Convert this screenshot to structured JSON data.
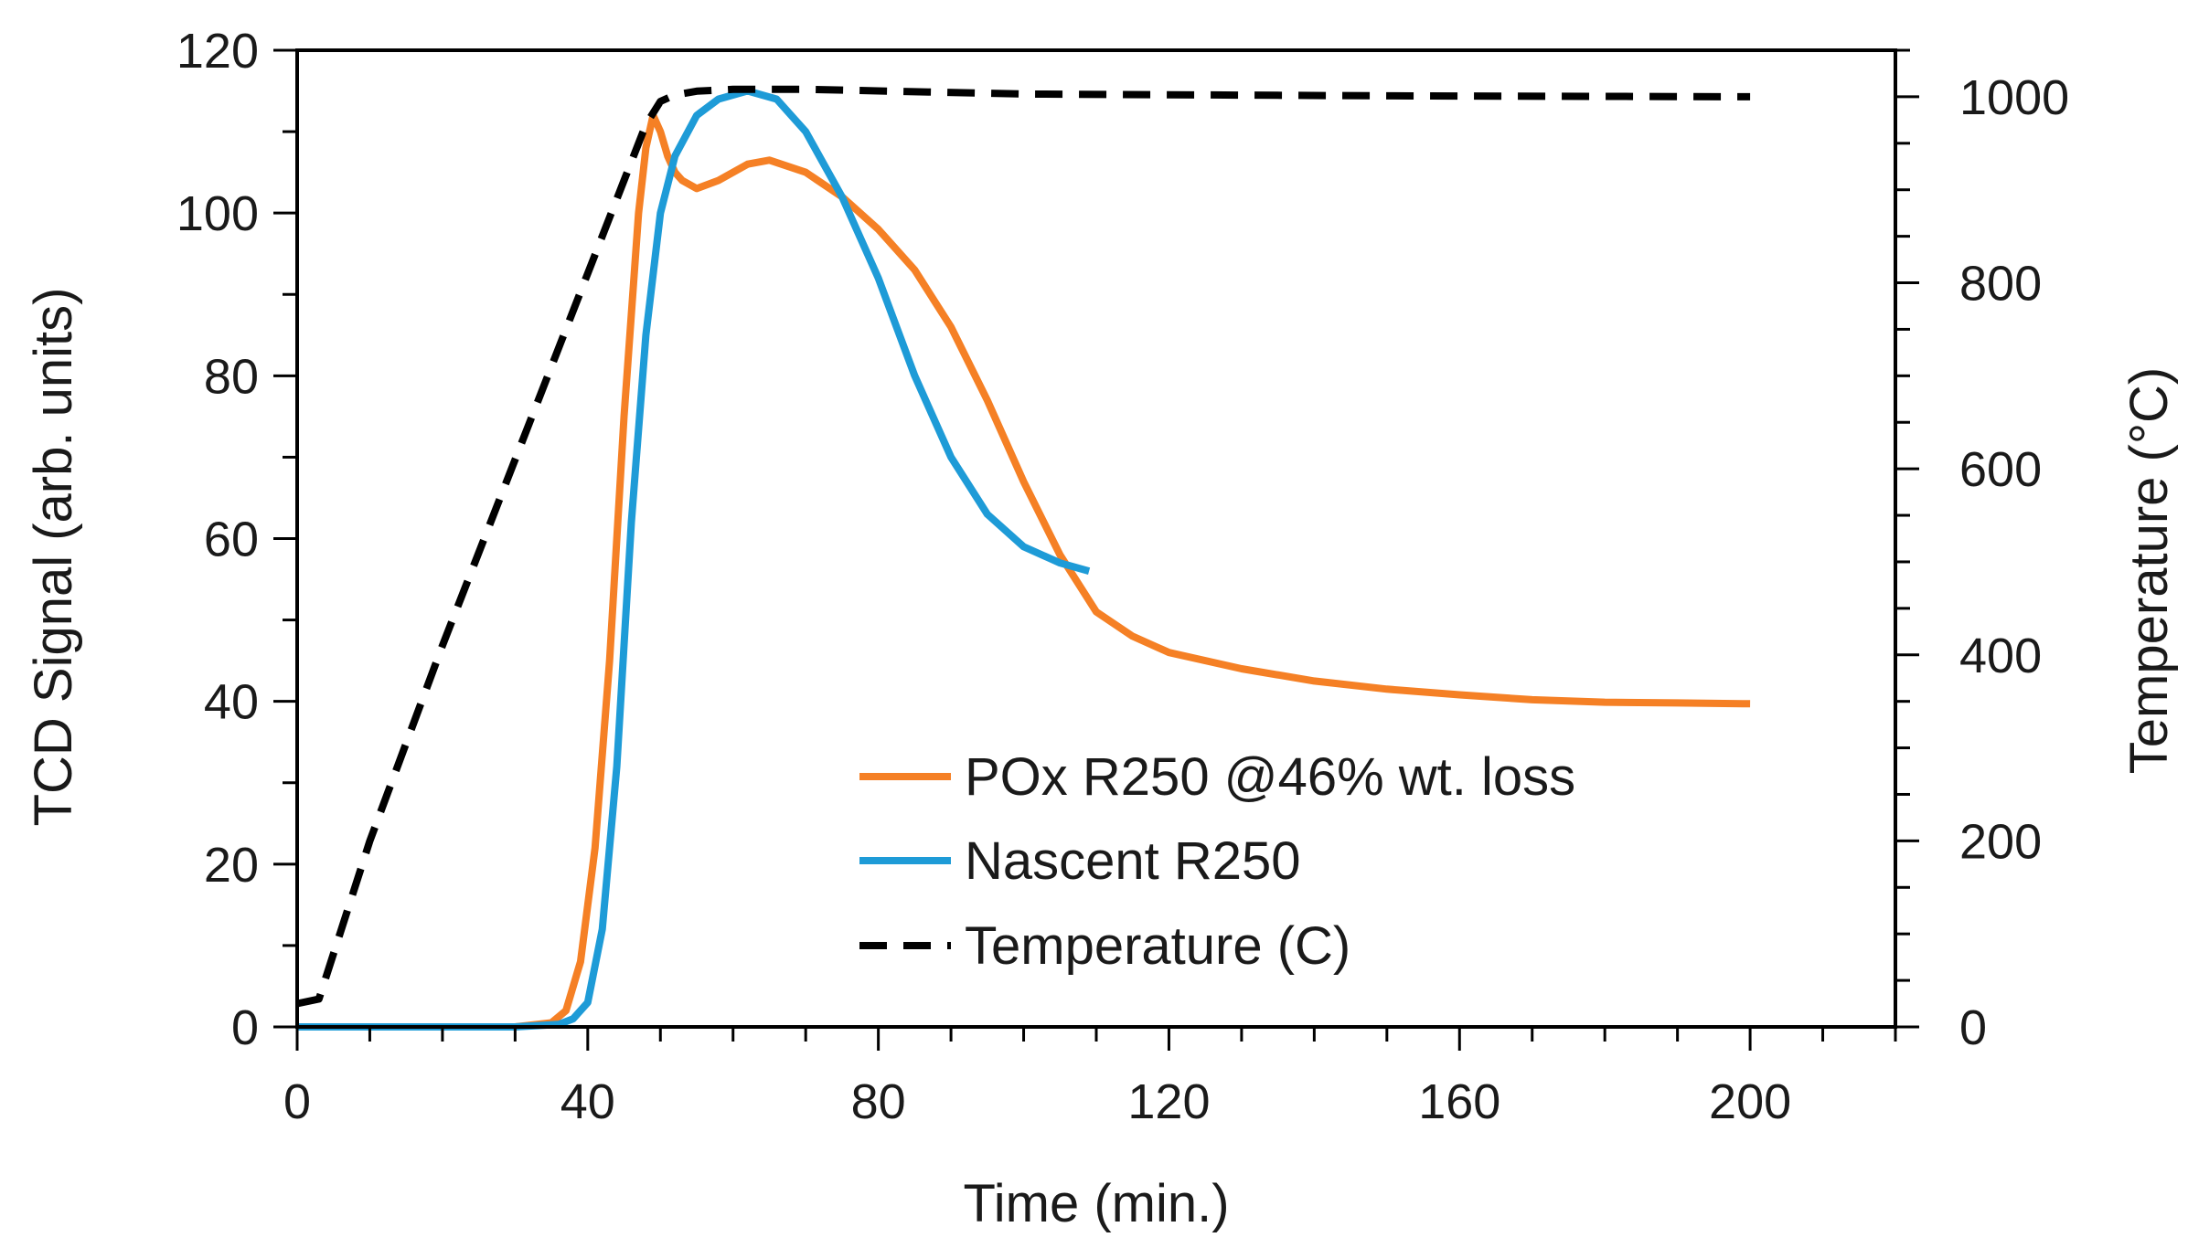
{
  "chart_data": {
    "type": "line",
    "title": "",
    "xlabel": "Time (min.)",
    "ylabel": "TCD Signal (arb. units)",
    "y2label": "Temperature (°C)",
    "xlim": [
      0,
      220
    ],
    "ylim": [
      0,
      120
    ],
    "y2lim": [
      0,
      1050
    ],
    "x_ticks": [
      0,
      40,
      80,
      120,
      160,
      200
    ],
    "y_ticks": [
      0,
      20,
      40,
      60,
      80,
      100,
      120
    ],
    "y2_ticks": [
      0,
      200,
      400,
      600,
      800,
      1000
    ],
    "legend_position": "center-right",
    "series": [
      {
        "name": "POx R250 @46% wt. loss",
        "axis": "left",
        "color": "#F58025",
        "style": "solid",
        "x": [
          0,
          30,
          35,
          37,
          39,
          41,
          43,
          45,
          47,
          48,
          49,
          50,
          51,
          52,
          53,
          55,
          58,
          62,
          65,
          70,
          75,
          80,
          85,
          90,
          95,
          100,
          105,
          110,
          115,
          120,
          130,
          140,
          150,
          160,
          170,
          180,
          190,
          200
        ],
        "values": [
          0,
          0,
          0.5,
          2,
          8,
          22,
          45,
          75,
          100,
          108,
          112,
          110,
          107,
          105,
          104,
          103,
          104,
          106,
          106.5,
          105,
          102,
          98,
          93,
          86,
          77,
          67,
          58,
          51,
          48,
          46,
          44,
          42.5,
          41.5,
          40.8,
          40.2,
          39.9,
          39.8,
          39.7
        ]
      },
      {
        "name": "Nascent R250",
        "axis": "left",
        "color": "#1E9BD7",
        "style": "solid",
        "x": [
          0,
          30,
          36,
          38,
          40,
          42,
          44,
          46,
          48,
          50,
          52,
          55,
          58,
          62,
          66,
          70,
          75,
          80,
          85,
          90,
          95,
          100,
          105,
          109
        ],
        "values": [
          0,
          0,
          0.3,
          1,
          3,
          12,
          32,
          62,
          85,
          100,
          107,
          112,
          114,
          115,
          114,
          110,
          102,
          92,
          80,
          70,
          63,
          59,
          57,
          56
        ]
      },
      {
        "name": "Temperature (C)",
        "axis": "right",
        "color": "#000000",
        "style": "dashed",
        "x": [
          0,
          3,
          10,
          20,
          30,
          40,
          45,
          48,
          50,
          52,
          55,
          60,
          70,
          100,
          150,
          200
        ],
        "values": [
          25,
          30,
          200,
          410,
          610,
          810,
          910,
          970,
          995,
          1002,
          1006,
          1008,
          1008,
          1003,
          1001,
          1000
        ]
      }
    ]
  }
}
